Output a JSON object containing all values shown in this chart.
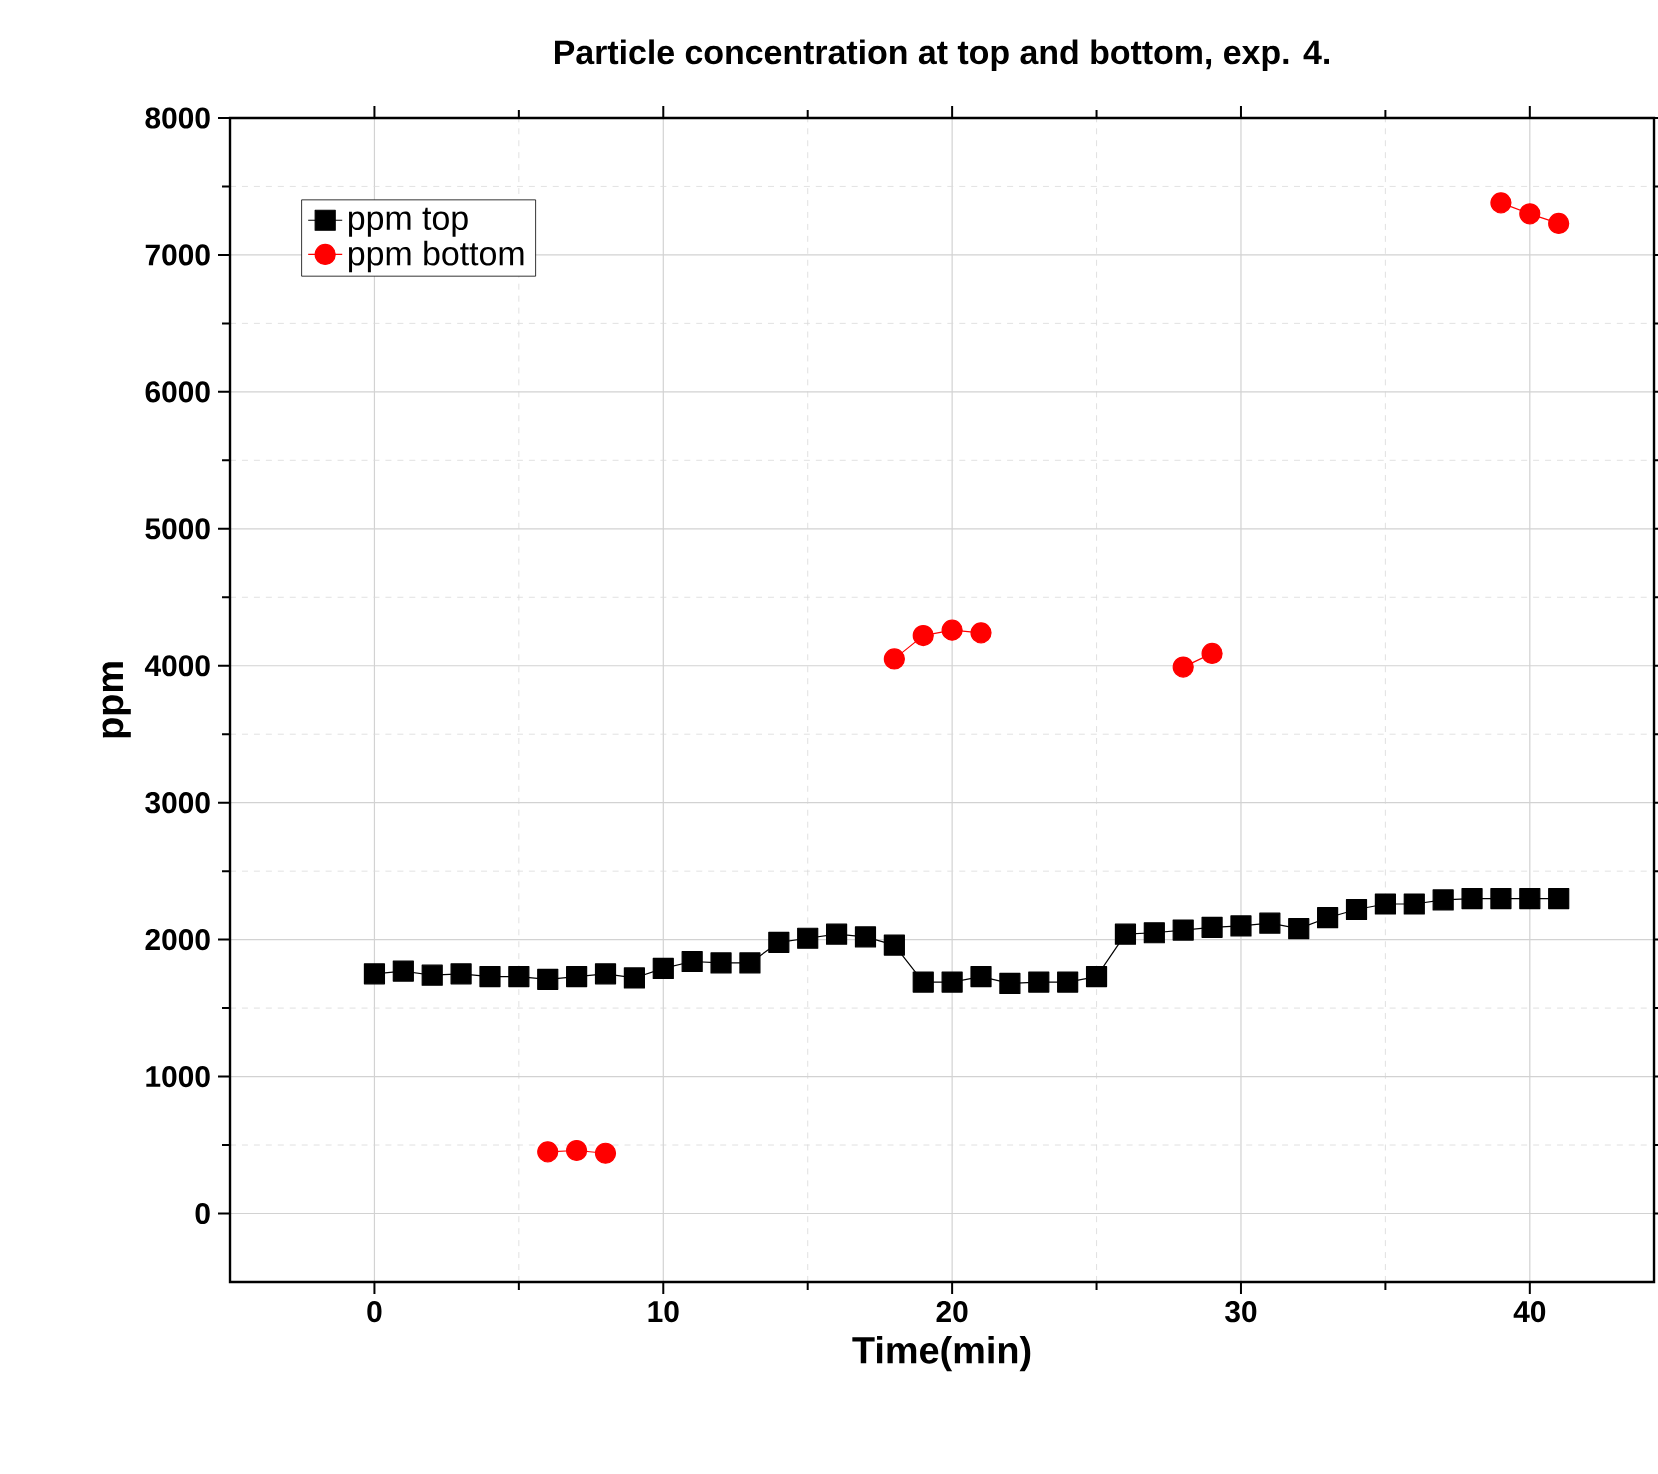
{
  "chart_data": {
    "type": "line",
    "title": "Particle concentration at top and bottom, exp. 4.",
    "xlabel": "Time(min)",
    "ylabel": "ppm",
    "x": [
      0,
      1,
      2,
      3,
      4,
      5,
      6,
      7,
      8,
      9,
      10,
      11,
      12,
      13,
      14,
      15,
      16,
      17,
      18,
      19,
      20,
      21,
      22,
      23,
      24,
      25,
      26,
      27,
      28,
      29,
      30,
      31,
      32,
      33,
      34,
      35,
      36,
      37,
      38,
      39,
      40,
      41
    ],
    "series": [
      {
        "name": "ppm top",
        "color": "#000000",
        "marker": "square",
        "values": [
          1750,
          1770,
          1740,
          1750,
          1730,
          1730,
          1710,
          1730,
          1750,
          1720,
          1790,
          1840,
          1830,
          1830,
          1980,
          2010,
          2040,
          2020,
          1960,
          1690,
          1690,
          1730,
          1680,
          1690,
          1690,
          1730,
          2040,
          2050,
          2070,
          2090,
          2100,
          2120,
          2080,
          2160,
          2220,
          2260,
          2260,
          2290,
          2300,
          2300,
          2300,
          2300
        ]
      },
      {
        "name": "ppm bottom",
        "color": "#ff0000",
        "marker": "circle",
        "values": [
          null,
          null,
          null,
          null,
          null,
          null,
          450,
          460,
          440,
          null,
          null,
          null,
          null,
          null,
          null,
          null,
          null,
          null,
          4050,
          4220,
          4260,
          4240,
          null,
          null,
          null,
          null,
          null,
          null,
          3990,
          4090,
          null,
          null,
          null,
          null,
          null,
          null,
          null,
          null,
          null,
          7380,
          7300,
          7230
        ]
      }
    ],
    "xlim": [
      -5,
      44.3
    ],
    "xticks": [
      0,
      10,
      20,
      30,
      40
    ],
    "ylim": [
      -500,
      8000
    ],
    "yticks": [
      0,
      1000,
      2000,
      3000,
      4000,
      5000,
      6000,
      7000,
      8000
    ],
    "grid": true,
    "legend": "top left",
    "line_style": "solid"
  }
}
